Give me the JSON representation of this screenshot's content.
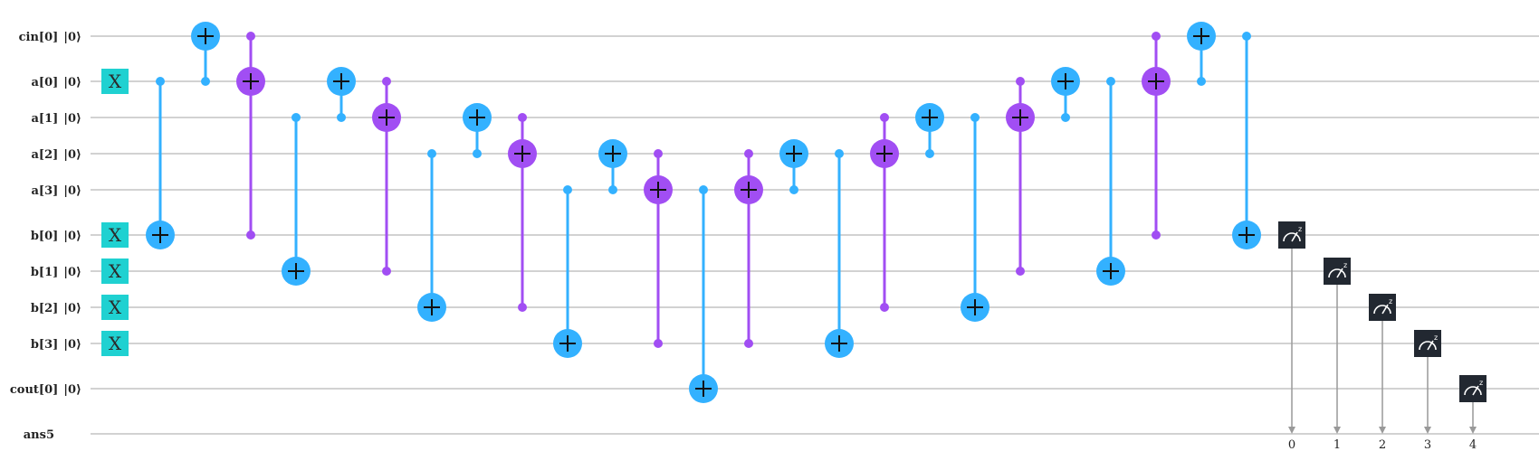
{
  "qubits": [
    {
      "label": "cin[0]",
      "init": "|0⟩"
    },
    {
      "label": "a[0]",
      "init": "|0⟩"
    },
    {
      "label": "a[1]",
      "init": "|0⟩"
    },
    {
      "label": "a[2]",
      "init": "|0⟩"
    },
    {
      "label": "a[3]",
      "init": "|0⟩"
    },
    {
      "label": "b[0]",
      "init": "|0⟩"
    },
    {
      "label": "b[1]",
      "init": "|0⟩"
    },
    {
      "label": "b[2]",
      "init": "|0⟩"
    },
    {
      "label": "b[3]",
      "init": "|0⟩"
    },
    {
      "label": "cout[0]",
      "init": "|0⟩"
    }
  ],
  "classical_register": {
    "label": "ans5"
  },
  "colors": {
    "wire": "#b8b8b8",
    "cx": "#33b1ff",
    "ccx": "#a14ef3",
    "x_gate": "#1fd1d1",
    "measure": "#222831",
    "measure_line": "#999999"
  },
  "x_gates": [
    {
      "qubit": 1,
      "label": "X"
    },
    {
      "qubit": 5,
      "label": "X"
    },
    {
      "qubit": 6,
      "label": "X"
    },
    {
      "qubit": 7,
      "label": "X"
    },
    {
      "qubit": 8,
      "label": "X"
    }
  ],
  "operations": [
    {
      "type": "cx",
      "controls": [
        1
      ],
      "target": 5
    },
    {
      "type": "cx",
      "controls": [
        1
      ],
      "target": 0
    },
    {
      "type": "ccx",
      "controls": [
        0,
        5
      ],
      "target": 1
    },
    {
      "type": "cx",
      "controls": [
        2
      ],
      "target": 6
    },
    {
      "type": "cx",
      "controls": [
        2
      ],
      "target": 1
    },
    {
      "type": "ccx",
      "controls": [
        1,
        6
      ],
      "target": 2
    },
    {
      "type": "cx",
      "controls": [
        3
      ],
      "target": 7
    },
    {
      "type": "cx",
      "controls": [
        3
      ],
      "target": 2
    },
    {
      "type": "ccx",
      "controls": [
        2,
        7
      ],
      "target": 3
    },
    {
      "type": "cx",
      "controls": [
        4
      ],
      "target": 8
    },
    {
      "type": "cx",
      "controls": [
        4
      ],
      "target": 3
    },
    {
      "type": "ccx",
      "controls": [
        3,
        8
      ],
      "target": 4
    },
    {
      "type": "cx",
      "controls": [
        4
      ],
      "target": 9
    },
    {
      "type": "ccx",
      "controls": [
        3,
        8
      ],
      "target": 4
    },
    {
      "type": "cx",
      "controls": [
        4
      ],
      "target": 3
    },
    {
      "type": "cx",
      "controls": [
        3
      ],
      "target": 8
    },
    {
      "type": "ccx",
      "controls": [
        2,
        7
      ],
      "target": 3
    },
    {
      "type": "cx",
      "controls": [
        3
      ],
      "target": 2
    },
    {
      "type": "cx",
      "controls": [
        2
      ],
      "target": 7
    },
    {
      "type": "ccx",
      "controls": [
        1,
        6
      ],
      "target": 2
    },
    {
      "type": "cx",
      "controls": [
        2
      ],
      "target": 1
    },
    {
      "type": "cx",
      "controls": [
        1
      ],
      "target": 6
    },
    {
      "type": "ccx",
      "controls": [
        0,
        5
      ],
      "target": 1
    },
    {
      "type": "cx",
      "controls": [
        1
      ],
      "target": 0
    },
    {
      "type": "cx",
      "controls": [
        0
      ],
      "target": 5
    }
  ],
  "measurements": [
    {
      "qubit": 5,
      "bit": "0"
    },
    {
      "qubit": 6,
      "bit": "1"
    },
    {
      "qubit": 7,
      "bit": "2"
    },
    {
      "qubit": 8,
      "bit": "3"
    },
    {
      "qubit": 9,
      "bit": "4"
    }
  ]
}
